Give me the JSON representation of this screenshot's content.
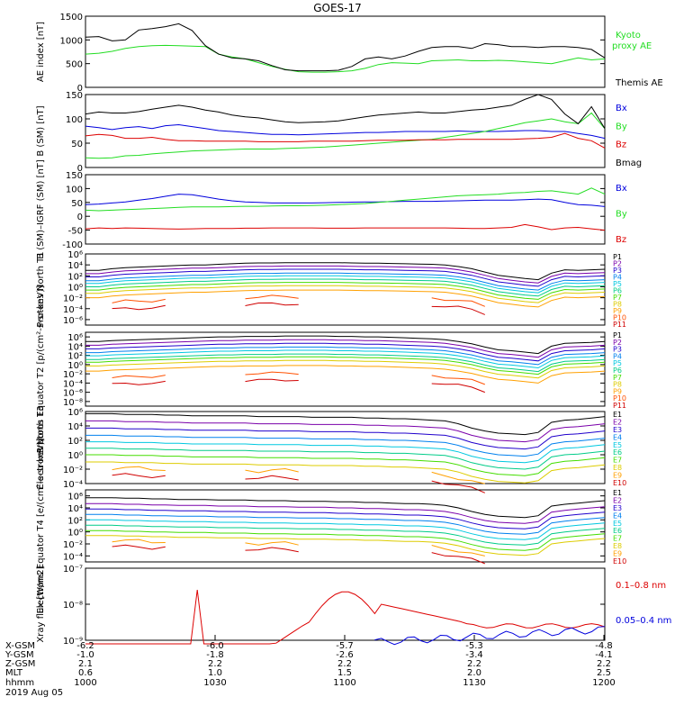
{
  "title": "GOES-17",
  "chart_data": [
    {
      "type": "line",
      "ylabel": "AE index [nT]",
      "ylim": [
        0,
        1500
      ],
      "yticks": [
        "0",
        "500",
        "1000",
        "1500"
      ],
      "yscale": "linear",
      "series": [
        {
          "name": "Kyoto proxy AE",
          "color": "#22dd22",
          "y": [
            700,
            720,
            760,
            820,
            860,
            880,
            885,
            880,
            870,
            860,
            700,
            640,
            600,
            520,
            440,
            380,
            330,
            320,
            320,
            330,
            350,
            400,
            480,
            520,
            510,
            500,
            560,
            570,
            580,
            560,
            560,
            570,
            560,
            540,
            520,
            500,
            560,
            620,
            580,
            600
          ]
        },
        {
          "name": "Themis AE",
          "color": "#000000",
          "y": [
            1060,
            1070,
            980,
            1000,
            1210,
            1240,
            1280,
            1340,
            1200,
            880,
            700,
            620,
            600,
            560,
            460,
            370,
            350,
            350,
            350,
            360,
            440,
            600,
            640,
            600,
            660,
            760,
            840,
            860,
            860,
            820,
            920,
            900,
            860,
            860,
            840,
            860,
            860,
            840,
            800,
            620
          ]
        }
      ]
    },
    {
      "type": "line",
      "ylabel": "B (SM) [nT]",
      "ylim": [
        0,
        150
      ],
      "yticks": [
        "0",
        "50",
        "100",
        "150"
      ],
      "yscale": "linear",
      "series": [
        {
          "name": "Bx",
          "color": "#0000dd",
          "y": [
            85,
            82,
            78,
            82,
            84,
            80,
            86,
            88,
            84,
            80,
            76,
            74,
            72,
            70,
            68,
            68,
            67,
            68,
            69,
            70,
            71,
            72,
            72,
            73,
            74,
            74,
            74,
            74,
            75,
            74,
            74,
            74,
            75,
            76,
            76,
            74,
            74,
            70,
            66,
            60
          ]
        },
        {
          "name": "By",
          "color": "#22dd22",
          "y": [
            20,
            19,
            20,
            24,
            25,
            28,
            30,
            32,
            34,
            35,
            36,
            37,
            38,
            38,
            38,
            39,
            40,
            41,
            42,
            44,
            46,
            48,
            50,
            52,
            54,
            56,
            58,
            62,
            66,
            70,
            74,
            80,
            86,
            92,
            96,
            100,
            94,
            90,
            112,
            80
          ]
        },
        {
          "name": "Bz",
          "color": "#dd0000",
          "y": [
            65,
            68,
            66,
            60,
            60,
            62,
            58,
            55,
            55,
            54,
            54,
            54,
            54,
            53,
            53,
            53,
            53,
            54,
            54,
            54,
            54,
            55,
            56,
            56,
            56,
            57,
            57,
            57,
            58,
            58,
            58,
            58,
            58,
            59,
            60,
            62,
            70,
            60,
            55,
            40
          ]
        },
        {
          "name": "Bmag",
          "color": "#000000",
          "y": [
            110,
            114,
            112,
            112,
            115,
            120,
            124,
            128,
            124,
            118,
            114,
            108,
            104,
            102,
            98,
            94,
            92,
            93,
            94,
            96,
            100,
            104,
            108,
            110,
            112,
            114,
            112,
            112,
            115,
            118,
            120,
            124,
            128,
            140,
            150,
            140,
            110,
            90,
            125,
            80
          ]
        }
      ]
    },
    {
      "type": "line",
      "ylabel": "B (SM)–IGRF (SM) [nT]",
      "ylim": [
        -100,
        150
      ],
      "yticks": [
        "-100",
        "-50",
        "0",
        "50",
        "100",
        "150"
      ],
      "yscale": "linear",
      "series": [
        {
          "name": "Bx",
          "color": "#0000dd",
          "y": [
            42,
            44,
            48,
            52,
            58,
            64,
            72,
            80,
            78,
            70,
            62,
            56,
            52,
            50,
            48,
            48,
            48,
            48,
            49,
            50,
            51,
            52,
            52,
            53,
            54,
            54,
            54,
            55,
            56,
            57,
            58,
            58,
            58,
            60,
            62,
            60,
            50,
            42,
            40,
            35
          ]
        },
        {
          "name": "By",
          "color": "#22dd22",
          "y": [
            22,
            20,
            22,
            24,
            26,
            28,
            30,
            32,
            34,
            34,
            34,
            35,
            36,
            36,
            37,
            38,
            38,
            39,
            40,
            42,
            44,
            46,
            50,
            54,
            58,
            62,
            66,
            70,
            74,
            76,
            78,
            80,
            84,
            86,
            90,
            92,
            86,
            80,
            102,
            80
          ]
        },
        {
          "name": "Bz",
          "color": "#dd0000",
          "y": [
            -45,
            -42,
            -44,
            -42,
            -43,
            -44,
            -45,
            -46,
            -45,
            -44,
            -44,
            -44,
            -43,
            -43,
            -42,
            -42,
            -42,
            -42,
            -43,
            -43,
            -43,
            -42,
            -42,
            -42,
            -42,
            -42,
            -42,
            -42,
            -43,
            -44,
            -44,
            -42,
            -40,
            -30,
            -38,
            -48,
            -42,
            -40,
            -45,
            -50
          ]
        }
      ]
    },
    {
      "type": "line",
      "ylabel": "Protons North T1",
      "ylim": [
        -7,
        6
      ],
      "yticks": [
        "10⁶",
        "10⁴",
        "10²",
        "10⁰",
        "10⁻²",
        "10⁻⁴",
        "10⁻⁶"
      ],
      "yscale": "log",
      "channels": [
        "P1",
        "P2",
        "P3",
        "P4",
        "P5",
        "P6",
        "P7",
        "P8",
        "P9",
        "P10",
        "P11"
      ],
      "channel_colors": [
        "#000000",
        "#7a00aa",
        "#2000cc",
        "#0080ee",
        "#00c8e0",
        "#00cc88",
        "#44dd00",
        "#ddcc00",
        "#ffa000",
        "#ff5000",
        "#d00000"
      ],
      "profile": [
        0,
        0,
        0.3,
        0.5,
        0.6,
        0.7,
        0.8,
        0.9,
        1.0,
        1.0,
        1.1,
        1.2,
        1.3,
        1.35,
        1.35,
        1.4,
        1.4,
        1.4,
        1.4,
        1.4,
        1.35,
        1.3,
        1.3,
        1.25,
        1.2,
        1.15,
        1.1,
        1.0,
        0.7,
        0.3,
        -0.3,
        -0.9,
        -1.2,
        -1.5,
        -1.7,
        -0.5,
        0.1,
        0.0,
        0.1,
        0.2
      ],
      "base": [
        3.0,
        2.4,
        1.8,
        1.1,
        0.6,
        0.0,
        -0.6,
        -1.2,
        -2.0,
        -3.2,
        -4.5
      ]
    },
    {
      "type": "line",
      "ylabel": "Protons Equator T2 [p/(cm²-s-sr-keV)]",
      "ylim": [
        -9,
        7
      ],
      "yticks": [
        "10⁶",
        "10⁴",
        "10²",
        "10⁰",
        "10⁻²",
        "10⁻⁴",
        "10⁻⁶",
        "10⁻⁸"
      ],
      "yscale": "log",
      "channels": [
        "P1",
        "P2",
        "P3",
        "P4",
        "P5",
        "P6",
        "P7",
        "P8",
        "P9",
        "P10",
        "P11"
      ],
      "channel_colors": [
        "#000000",
        "#7a00aa",
        "#2000cc",
        "#0080ee",
        "#00c8e0",
        "#00cc88",
        "#44dd00",
        "#ddcc00",
        "#ffa000",
        "#ff5000",
        "#d00000"
      ],
      "profile": [
        0,
        0,
        0.2,
        0.3,
        0.4,
        0.5,
        0.6,
        0.7,
        0.8,
        0.9,
        1.0,
        1.0,
        1.1,
        1.1,
        1.1,
        1.2,
        1.2,
        1.2,
        1.2,
        1.1,
        1.1,
        1.0,
        1.0,
        0.9,
        0.8,
        0.7,
        0.6,
        0.4,
        0.0,
        -0.5,
        -1.2,
        -1.8,
        -2.0,
        -2.3,
        -2.6,
        -1.0,
        -0.4,
        -0.3,
        -0.2,
        0.0
      ],
      "base": [
        5.0,
        4.2,
        3.4,
        2.6,
        1.9,
        1.1,
        0.5,
        -0.3,
        -1.4,
        -3.0,
        -4.5
      ]
    },
    {
      "type": "line",
      "ylabel": "Electrons North T3",
      "ylim": [
        -4,
        6
      ],
      "yticks": [
        "10⁶",
        "10⁴",
        "10²",
        "10⁰",
        "10⁻²",
        "10⁻⁴"
      ],
      "yscale": "log",
      "channels": [
        "E1",
        "E2",
        "E3",
        "E4",
        "E5",
        "E6",
        "E7",
        "E8",
        "E9",
        "E10"
      ],
      "channel_colors": [
        "#000000",
        "#7a00aa",
        "#2000cc",
        "#0080ee",
        "#00c8e0",
        "#00cc88",
        "#44dd00",
        "#ddcc00",
        "#ffa000",
        "#d00000"
      ],
      "profile": [
        0,
        0,
        0,
        -0.1,
        -0.1,
        -0.1,
        -0.2,
        -0.2,
        -0.3,
        -0.3,
        -0.3,
        -0.3,
        -0.3,
        -0.4,
        -0.4,
        -0.4,
        -0.4,
        -0.5,
        -0.5,
        -0.5,
        -0.5,
        -0.6,
        -0.6,
        -0.7,
        -0.7,
        -0.8,
        -0.9,
        -1.0,
        -1.4,
        -2.0,
        -2.4,
        -2.7,
        -2.8,
        -2.9,
        -2.6,
        -1.2,
        -0.9,
        -0.8,
        -0.6,
        -0.4
      ],
      "base": [
        5.7,
        4.7,
        3.7,
        2.7,
        1.8,
        0.9,
        0.0,
        -1.0,
        -1.8,
        -2.8
      ]
    },
    {
      "type": "line",
      "ylabel": "Electrons Equator T4 [e/(cm²-s-sr-keV)]",
      "ylim": [
        -5,
        7
      ],
      "yticks": [
        "10⁶",
        "10⁴",
        "10²",
        "10⁰",
        "10⁻²",
        "10⁻⁴"
      ],
      "yscale": "log",
      "channels": [
        "E1",
        "E2",
        "E3",
        "E4",
        "E5",
        "E6",
        "E7",
        "E8",
        "E9",
        "E10"
      ],
      "channel_colors": [
        "#000000",
        "#7a00aa",
        "#2000cc",
        "#0080ee",
        "#00c8e0",
        "#00cc88",
        "#44dd00",
        "#ddcc00",
        "#ffa000",
        "#d00000"
      ],
      "profile": [
        0,
        0,
        0,
        -0.1,
        -0.1,
        -0.2,
        -0.2,
        -0.3,
        -0.3,
        -0.3,
        -0.4,
        -0.4,
        -0.4,
        -0.5,
        -0.5,
        -0.5,
        -0.6,
        -0.6,
        -0.6,
        -0.7,
        -0.7,
        -0.8,
        -0.8,
        -0.9,
        -1.0,
        -1.0,
        -1.1,
        -1.3,
        -1.7,
        -2.3,
        -2.8,
        -3.1,
        -3.2,
        -3.3,
        -3.0,
        -1.4,
        -1.1,
        -0.9,
        -0.7,
        -0.5
      ],
      "base": [
        5.7,
        4.7,
        3.8,
        2.9,
        2.0,
        1.1,
        0.2,
        -0.6,
        -1.4,
        -2.4
      ]
    },
    {
      "type": "line",
      "ylabel": "Xray flux [W/m2]",
      "ylim": [
        -9,
        -7
      ],
      "yticks": [
        "10⁻⁷",
        "10⁻⁸",
        "10⁻⁹"
      ],
      "yscale": "log",
      "series": [
        {
          "name": "0.1–0.8 nm",
          "color": "#dd0000"
        },
        {
          "name": "0.05–0.4 nm",
          "color": "#0000dd"
        }
      ]
    }
  ],
  "xaxis": {
    "rows": [
      {
        "label": "X-GSM",
        "values": [
          "-6.2",
          "-6.0",
          "-5.7",
          "-5.3",
          "-4.8"
        ]
      },
      {
        "label": "Y-GSM",
        "values": [
          "-1.0",
          "-1.8",
          "-2.6",
          "-3.4",
          "-4.1"
        ]
      },
      {
        "label": "Z-GSM",
        "values": [
          "2.1",
          "2.2",
          "2.2",
          "2.2",
          "2.2"
        ]
      },
      {
        "label": "MLT",
        "values": [
          "0.6",
          "1.0",
          "1.5",
          "2.0",
          "2.5"
        ]
      },
      {
        "label": "hhmm",
        "values": [
          "1000",
          "1030",
          "1100",
          "1130",
          "1200"
        ]
      }
    ],
    "date": "2019 Aug 05"
  }
}
